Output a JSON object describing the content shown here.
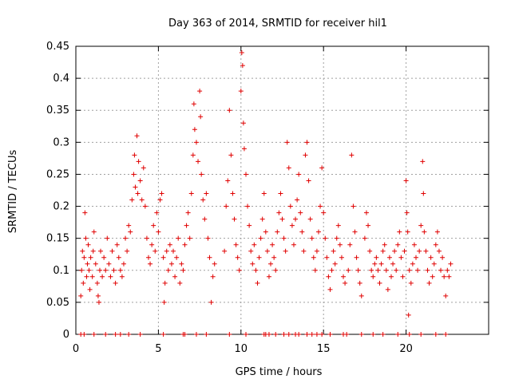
{
  "chart_data": {
    "type": "scatter",
    "title": "Day 363 of 2014, SRMTID for receiver hil1",
    "xlabel": "GPS time / hours",
    "ylabel": "SRMTID / TECUs",
    "xlim": [
      0,
      25
    ],
    "ylim": [
      0,
      0.45
    ],
    "x_ticks": [
      0,
      5,
      10,
      15,
      20
    ],
    "x_tick_labels": [
      "0",
      "5",
      "10",
      "15",
      "20"
    ],
    "y_ticks": [
      0,
      0.05,
      0.1,
      0.15,
      0.2,
      0.25,
      0.3,
      0.35,
      0.4,
      0.45
    ],
    "y_tick_labels": [
      "0",
      "0.05",
      "0.1",
      "0.15",
      "0.2",
      "0.25",
      "0.3",
      "0.35",
      "0.4",
      "0.45"
    ],
    "grid": true,
    "marker": "+",
    "color": "#e00000",
    "series": [
      {
        "name": "hil1",
        "points": [
          [
            0.3,
            0.06
          ],
          [
            0.35,
            0.1
          ],
          [
            0.4,
            0.13
          ],
          [
            0.45,
            0.08
          ],
          [
            0.5,
            0.12
          ],
          [
            0.55,
            0.19
          ],
          [
            0.6,
            0.15
          ],
          [
            0.65,
            0.09
          ],
          [
            0.7,
            0.11
          ],
          [
            0.75,
            0.14
          ],
          [
            0.8,
            0.1
          ],
          [
            0.85,
            0.07
          ],
          [
            0.9,
            0.12
          ],
          [
            1.0,
            0.09
          ],
          [
            1.05,
            0.13
          ],
          [
            1.1,
            0.16
          ],
          [
            1.2,
            0.11
          ],
          [
            1.3,
            0.08
          ],
          [
            1.35,
            0.06
          ],
          [
            1.4,
            0.05
          ],
          [
            1.45,
            0.1
          ],
          [
            1.5,
            0.13
          ],
          [
            1.6,
            0.09
          ],
          [
            1.7,
            0.12
          ],
          [
            1.8,
            0.1
          ],
          [
            1.9,
            0.15
          ],
          [
            2.0,
            0.11
          ],
          [
            2.1,
            0.09
          ],
          [
            2.2,
            0.13
          ],
          [
            2.3,
            0.1
          ],
          [
            2.4,
            0.08
          ],
          [
            2.5,
            0.14
          ],
          [
            2.6,
            0.12
          ],
          [
            2.7,
            0.1
          ],
          [
            2.8,
            0.09
          ],
          [
            2.9,
            0.11
          ],
          [
            3.0,
            0.15
          ],
          [
            3.1,
            0.13
          ],
          [
            3.2,
            0.17
          ],
          [
            3.3,
            0.16
          ],
          [
            3.4,
            0.21
          ],
          [
            3.5,
            0.25
          ],
          [
            3.55,
            0.28
          ],
          [
            3.6,
            0.23
          ],
          [
            3.7,
            0.31
          ],
          [
            3.75,
            0.22
          ],
          [
            3.8,
            0.27
          ],
          [
            3.9,
            0.24
          ],
          [
            4.0,
            0.21
          ],
          [
            4.1,
            0.26
          ],
          [
            4.2,
            0.2
          ],
          [
            4.3,
            0.15
          ],
          [
            4.4,
            0.12
          ],
          [
            4.5,
            0.11
          ],
          [
            4.6,
            0.14
          ],
          [
            4.7,
            0.17
          ],
          [
            4.8,
            0.13
          ],
          [
            4.9,
            0.19
          ],
          [
            5.0,
            0.16
          ],
          [
            5.1,
            0.21
          ],
          [
            5.2,
            0.22
          ],
          [
            5.3,
            0.12
          ],
          [
            5.35,
            0.05
          ],
          [
            5.4,
            0.08
          ],
          [
            5.5,
            0.13
          ],
          [
            5.6,
            0.1
          ],
          [
            5.7,
            0.14
          ],
          [
            5.8,
            0.11
          ],
          [
            5.9,
            0.13
          ],
          [
            6.0,
            0.09
          ],
          [
            6.1,
            0.12
          ],
          [
            6.2,
            0.15
          ],
          [
            6.3,
            0.08
          ],
          [
            6.4,
            0.11
          ],
          [
            6.5,
            0.1
          ],
          [
            6.6,
            0.14
          ],
          [
            6.7,
            0.17
          ],
          [
            6.8,
            0.19
          ],
          [
            6.9,
            0.15
          ],
          [
            7.0,
            0.22
          ],
          [
            7.1,
            0.28
          ],
          [
            7.15,
            0.36
          ],
          [
            7.2,
            0.32
          ],
          [
            7.3,
            0.3
          ],
          [
            7.4,
            0.27
          ],
          [
            7.5,
            0.38
          ],
          [
            7.55,
            0.34
          ],
          [
            7.6,
            0.25
          ],
          [
            7.7,
            0.21
          ],
          [
            7.8,
            0.18
          ],
          [
            7.9,
            0.22
          ],
          [
            8.0,
            0.15
          ],
          [
            8.1,
            0.12
          ],
          [
            8.2,
            0.05
          ],
          [
            8.3,
            0.09
          ],
          [
            8.4,
            0.11
          ],
          [
            9.0,
            0.13
          ],
          [
            9.1,
            0.2
          ],
          [
            9.2,
            0.24
          ],
          [
            9.3,
            0.35
          ],
          [
            9.4,
            0.28
          ],
          [
            9.5,
            0.22
          ],
          [
            9.6,
            0.18
          ],
          [
            9.7,
            0.14
          ],
          [
            9.8,
            0.12
          ],
          [
            9.9,
            0.1
          ],
          [
            10.0,
            0.38
          ],
          [
            10.05,
            0.44
          ],
          [
            10.1,
            0.42
          ],
          [
            10.15,
            0.33
          ],
          [
            10.2,
            0.29
          ],
          [
            10.3,
            0.25
          ],
          [
            10.4,
            0.2
          ],
          [
            10.5,
            0.17
          ],
          [
            10.6,
            0.13
          ],
          [
            10.7,
            0.11
          ],
          [
            10.8,
            0.14
          ],
          [
            10.9,
            0.1
          ],
          [
            11.0,
            0.08
          ],
          [
            11.1,
            0.12
          ],
          [
            11.2,
            0.15
          ],
          [
            11.3,
            0.18
          ],
          [
            11.4,
            0.22
          ],
          [
            11.5,
            0.16
          ],
          [
            11.6,
            0.13
          ],
          [
            11.7,
            0.09
          ],
          [
            11.8,
            0.11
          ],
          [
            11.9,
            0.14
          ],
          [
            12.0,
            0.12
          ],
          [
            12.1,
            0.1
          ],
          [
            12.2,
            0.16
          ],
          [
            12.3,
            0.19
          ],
          [
            12.4,
            0.22
          ],
          [
            12.5,
            0.18
          ],
          [
            12.6,
            0.15
          ],
          [
            12.7,
            0.13
          ],
          [
            12.8,
            0.3
          ],
          [
            12.9,
            0.26
          ],
          [
            13.0,
            0.2
          ],
          [
            13.1,
            0.17
          ],
          [
            13.2,
            0.14
          ],
          [
            13.3,
            0.18
          ],
          [
            13.4,
            0.21
          ],
          [
            13.5,
            0.25
          ],
          [
            13.6,
            0.19
          ],
          [
            13.7,
            0.16
          ],
          [
            13.8,
            0.13
          ],
          [
            13.9,
            0.28
          ],
          [
            14.0,
            0.3
          ],
          [
            14.1,
            0.24
          ],
          [
            14.2,
            0.18
          ],
          [
            14.3,
            0.15
          ],
          [
            14.4,
            0.12
          ],
          [
            14.5,
            0.1
          ],
          [
            14.6,
            0.13
          ],
          [
            14.7,
            0.16
          ],
          [
            14.8,
            0.2
          ],
          [
            14.9,
            0.26
          ],
          [
            15.0,
            0.19
          ],
          [
            15.1,
            0.15
          ],
          [
            15.2,
            0.12
          ],
          [
            15.3,
            0.09
          ],
          [
            15.4,
            0.07
          ],
          [
            15.5,
            0.1
          ],
          [
            15.6,
            0.13
          ],
          [
            15.7,
            0.11
          ],
          [
            15.8,
            0.15
          ],
          [
            15.9,
            0.17
          ],
          [
            16.0,
            0.14
          ],
          [
            16.1,
            0.12
          ],
          [
            16.2,
            0.09
          ],
          [
            16.3,
            0.08
          ],
          [
            16.5,
            0.1
          ],
          [
            16.6,
            0.14
          ],
          [
            16.7,
            0.28
          ],
          [
            16.8,
            0.2
          ],
          [
            16.9,
            0.16
          ],
          [
            17.0,
            0.12
          ],
          [
            17.1,
            0.1
          ],
          [
            17.2,
            0.08
          ],
          [
            17.3,
            0.06
          ],
          [
            17.5,
            0.15
          ],
          [
            17.6,
            0.19
          ],
          [
            17.7,
            0.17
          ],
          [
            17.8,
            0.13
          ],
          [
            17.9,
            0.1
          ],
          [
            18.0,
            0.09
          ],
          [
            18.1,
            0.11
          ],
          [
            18.2,
            0.12
          ],
          [
            18.3,
            0.1
          ],
          [
            18.4,
            0.08
          ],
          [
            18.5,
            0.11
          ],
          [
            18.6,
            0.13
          ],
          [
            18.7,
            0.14
          ],
          [
            18.8,
            0.1
          ],
          [
            18.9,
            0.07
          ],
          [
            19.0,
            0.12
          ],
          [
            19.1,
            0.09
          ],
          [
            19.2,
            0.11
          ],
          [
            19.3,
            0.13
          ],
          [
            19.4,
            0.1
          ],
          [
            19.5,
            0.14
          ],
          [
            19.6,
            0.16
          ],
          [
            19.7,
            0.12
          ],
          [
            19.8,
            0.09
          ],
          [
            19.9,
            0.13
          ],
          [
            20.0,
            0.24
          ],
          [
            20.05,
            0.19
          ],
          [
            20.1,
            0.16
          ],
          [
            20.15,
            0.03
          ],
          [
            20.2,
            0.1
          ],
          [
            20.3,
            0.08
          ],
          [
            20.4,
            0.11
          ],
          [
            20.5,
            0.14
          ],
          [
            20.6,
            0.12
          ],
          [
            20.7,
            0.1
          ],
          [
            20.8,
            0.13
          ],
          [
            20.9,
            0.17
          ],
          [
            21.0,
            0.27
          ],
          [
            21.05,
            0.22
          ],
          [
            21.1,
            0.16
          ],
          [
            21.2,
            0.13
          ],
          [
            21.3,
            0.1
          ],
          [
            21.4,
            0.08
          ],
          [
            21.5,
            0.12
          ],
          [
            21.6,
            0.09
          ],
          [
            21.7,
            0.11
          ],
          [
            21.8,
            0.14
          ],
          [
            21.9,
            0.16
          ],
          [
            22.0,
            0.13
          ],
          [
            22.1,
            0.1
          ],
          [
            22.2,
            0.12
          ],
          [
            22.3,
            0.09
          ],
          [
            22.4,
            0.06
          ],
          [
            22.5,
            0.1
          ],
          [
            22.6,
            0.09
          ],
          [
            22.7,
            0.11
          ],
          [
            0.3,
            0
          ],
          [
            0.5,
            0
          ],
          [
            1.1,
            0
          ],
          [
            1.8,
            0
          ],
          [
            2.4,
            0
          ],
          [
            2.7,
            0
          ],
          [
            3.2,
            0
          ],
          [
            3.9,
            0
          ],
          [
            5.3,
            0
          ],
          [
            6.5,
            0
          ],
          [
            6.6,
            0
          ],
          [
            7.3,
            0
          ],
          [
            7.9,
            0
          ],
          [
            9.3,
            0
          ],
          [
            10.3,
            0
          ],
          [
            11.4,
            0
          ],
          [
            11.5,
            0
          ],
          [
            11.7,
            0
          ],
          [
            12.1,
            0
          ],
          [
            12.6,
            0
          ],
          [
            12.9,
            0
          ],
          [
            13.3,
            0
          ],
          [
            13.5,
            0
          ],
          [
            14.0,
            0
          ],
          [
            14.3,
            0
          ],
          [
            14.6,
            0
          ],
          [
            14.9,
            0
          ],
          [
            15.4,
            0
          ],
          [
            16.2,
            0
          ],
          [
            16.4,
            0
          ],
          [
            17.3,
            0
          ],
          [
            18.0,
            0
          ],
          [
            18.6,
            0
          ],
          [
            19.5,
            0
          ],
          [
            20.2,
            0
          ],
          [
            20.9,
            0
          ],
          [
            21.8,
            0
          ],
          [
            22.4,
            0
          ]
        ]
      }
    ]
  }
}
